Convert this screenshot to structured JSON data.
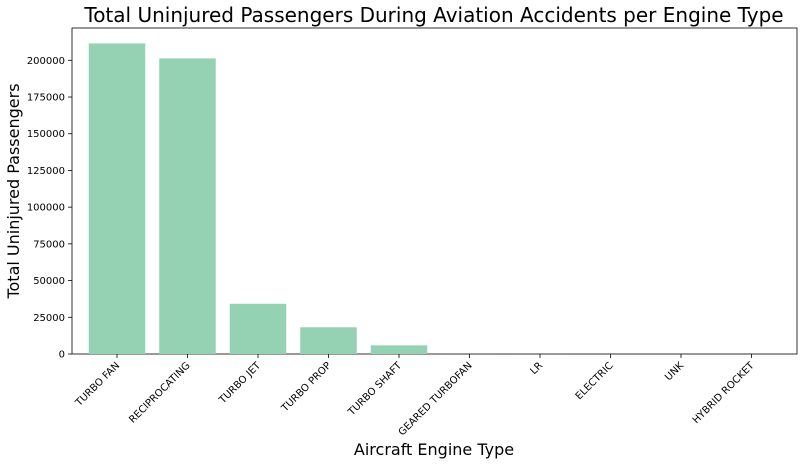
{
  "chart_data": {
    "type": "bar",
    "title": "Total Uninjured Passengers During Aviation Accidents per Engine Type",
    "xlabel": "Aircraft Engine Type",
    "ylabel": "Total Uninjured Passengers",
    "categories": [
      "TURBO FAN",
      "RECIPROCATING",
      "TURBO JET",
      "TURBO PROP",
      "TURBO SHAFT",
      "GEARED TURBOFAN",
      "LR",
      "ELECTRIC",
      "UNK",
      "HYBRID ROCKET"
    ],
    "values": [
      211500,
      201300,
      34200,
      18200,
      5900,
      12,
      4,
      3,
      2,
      1
    ],
    "ylim": [
      0,
      222000
    ],
    "yticks": [
      0,
      25000,
      50000,
      75000,
      100000,
      125000,
      150000,
      175000,
      200000
    ],
    "bar_color": "#95d2b3",
    "grid": false,
    "legend": "none"
  }
}
